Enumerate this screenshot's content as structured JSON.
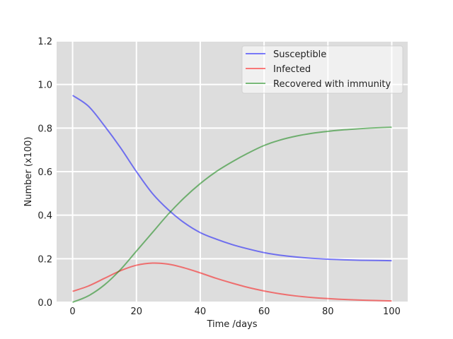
{
  "chart_data": {
    "type": "line",
    "title": "",
    "xlabel": "Time /days",
    "ylabel": "Number (x100)",
    "xlim": [
      -5,
      105
    ],
    "ylim": [
      0,
      1.2
    ],
    "xticks": [
      0,
      20,
      40,
      60,
      80,
      100
    ],
    "yticks": [
      0.0,
      0.2,
      0.4,
      0.6,
      0.8,
      1.0,
      1.2
    ],
    "xtick_labels": [
      "0",
      "20",
      "40",
      "60",
      "80",
      "100"
    ],
    "ytick_labels": [
      "0.0",
      "0.2",
      "0.4",
      "0.6",
      "0.8",
      "1.0",
      "1.2"
    ],
    "grid": true,
    "legend_position": "top-right",
    "x": [
      0,
      5,
      10,
      15,
      20,
      25,
      30,
      35,
      40,
      45,
      50,
      55,
      60,
      65,
      70,
      75,
      80,
      85,
      90,
      95,
      100
    ],
    "series": [
      {
        "name": "Susceptible",
        "color": "#0000ff",
        "values": [
          0.95,
          0.9,
          0.81,
          0.71,
          0.6,
          0.5,
          0.425,
          0.365,
          0.32,
          0.29,
          0.265,
          0.245,
          0.228,
          0.216,
          0.208,
          0.202,
          0.198,
          0.195,
          0.193,
          0.192,
          0.191
        ]
      },
      {
        "name": "Infected",
        "color": "#ff0000",
        "values": [
          0.05,
          0.075,
          0.11,
          0.145,
          0.17,
          0.18,
          0.175,
          0.158,
          0.135,
          0.11,
          0.088,
          0.068,
          0.052,
          0.039,
          0.029,
          0.022,
          0.017,
          0.013,
          0.01,
          0.008,
          0.006
        ]
      },
      {
        "name": "Recovered with immunity",
        "color": "#008000",
        "values": [
          0.0,
          0.03,
          0.08,
          0.15,
          0.235,
          0.32,
          0.405,
          0.48,
          0.545,
          0.6,
          0.645,
          0.685,
          0.72,
          0.745,
          0.763,
          0.776,
          0.785,
          0.792,
          0.797,
          0.801,
          0.804
        ]
      }
    ]
  }
}
